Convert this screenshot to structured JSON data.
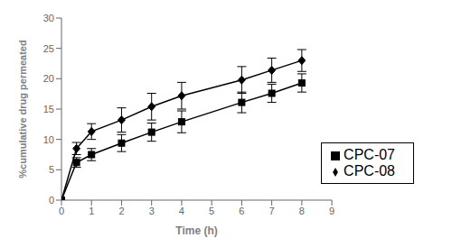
{
  "chart_data": {
    "type": "line",
    "x": [
      0,
      0.5,
      1,
      2,
      3,
      4,
      6,
      7,
      8
    ],
    "series": [
      {
        "name": "CPC-08",
        "color": "#000000",
        "marker": "diamond",
        "values": [
          0,
          8.5,
          11.3,
          13.2,
          15.4,
          17.2,
          19.8,
          21.4,
          23.0
        ],
        "errors": [
          0,
          1.0,
          1.3,
          2.0,
          2.2,
          2.2,
          2.2,
          2.0,
          1.8
        ]
      },
      {
        "name": "CPC-07",
        "color": "#000000",
        "marker": "square",
        "values": [
          0,
          6.2,
          7.5,
          9.4,
          11.2,
          12.9,
          16.1,
          17.6,
          19.3
        ],
        "errors": [
          0,
          0.8,
          1.0,
          1.4,
          1.5,
          1.8,
          1.7,
          1.5,
          1.5
        ]
      }
    ],
    "xlabel": "Time (h)",
    "ylabel": "%cumulative drug permeated",
    "xlim": [
      0,
      9
    ],
    "ylim": [
      0,
      30
    ],
    "xticks": [
      0,
      1,
      2,
      3,
      4,
      5,
      6,
      7,
      8,
      9
    ],
    "yticks": [
      0,
      5,
      10,
      15,
      20,
      25,
      30
    ],
    "grid": false,
    "legend": "lower right"
  }
}
